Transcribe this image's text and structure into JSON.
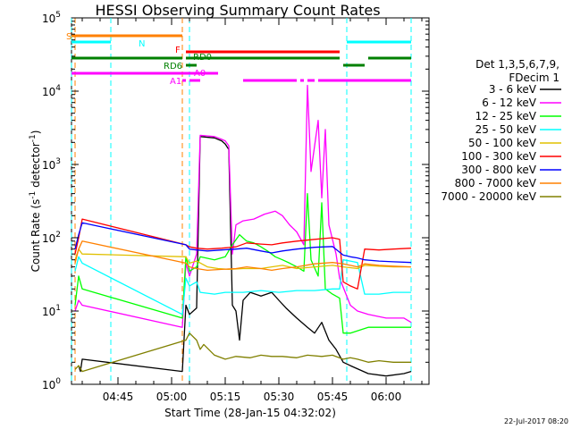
{
  "chart_data": {
    "type": "line",
    "title": "HESSI Observing Summary Count Rates",
    "xlabel": "Start Time (28-Jan-15 04:32:02)",
    "ylabel": "Count Rate (s⁻¹ detector⁻¹)",
    "ylabel_main": "Count Rate (s",
    "ylabel_sup1": "-1",
    "ylabel_mid": " detector",
    "ylabel_sup2": "-1",
    "ylabel_end": ")",
    "y_scale": "log",
    "ylim": [
      1,
      100000
    ],
    "y_ticks": [
      {
        "value": 1,
        "base": "10",
        "exp": "0"
      },
      {
        "value": 10,
        "base": "10",
        "exp": "1"
      },
      {
        "value": 100,
        "base": "10",
        "exp": "2"
      },
      {
        "value": 1000,
        "base": "10",
        "exp": "3"
      },
      {
        "value": 10000,
        "base": "10",
        "exp": "4"
      },
      {
        "value": 100000,
        "base": "10",
        "exp": "5"
      }
    ],
    "xlim": [
      "04:32",
      "06:12"
    ],
    "x_ticks": [
      "04:45",
      "05:00",
      "05:15",
      "05:30",
      "05:45",
      "06:00"
    ],
    "legend_title_1": "Det 1,3,5,6,7,9,",
    "legend_title_2": "FDecim 1",
    "legend_position": "right",
    "series": [
      {
        "name": "3 - 6 keV",
        "color": "#000000",
        "values": [
          [
            "04:34",
            1.8
          ],
          [
            "04:34.5",
            1.5
          ],
          [
            "04:35",
            2.2
          ],
          [
            "05:03",
            1.5
          ],
          [
            "05:04",
            12
          ],
          [
            "05:05",
            9
          ],
          [
            "05:07",
            11
          ],
          [
            "05:08",
            2400
          ],
          [
            "05:12",
            2300
          ],
          [
            "05:14",
            2100
          ],
          [
            "05:15",
            1900
          ],
          [
            "05:16",
            1600
          ],
          [
            "05:17",
            12
          ],
          [
            "05:18",
            10
          ],
          [
            "05:19",
            4
          ],
          [
            "05:20",
            14
          ],
          [
            "05:22",
            18
          ],
          [
            "05:25",
            16
          ],
          [
            "05:28",
            18
          ],
          [
            "05:30",
            14
          ],
          [
            "05:32",
            11
          ],
          [
            "05:35",
            8
          ],
          [
            "05:38",
            6
          ],
          [
            "05:40",
            5
          ],
          [
            "05:42",
            7
          ],
          [
            "05:44",
            4
          ],
          [
            "05:46",
            3
          ],
          [
            "05:48",
            2
          ],
          [
            "05:50",
            1.8
          ],
          [
            "05:55",
            1.4
          ],
          [
            "06:00",
            1.3
          ],
          [
            "06:05",
            1.4
          ],
          [
            "06:07",
            1.5
          ]
        ]
      },
      {
        "name": "6 - 12 keV",
        "color": "#ff00ff",
        "values": [
          [
            "04:33",
            10
          ],
          [
            "04:34",
            14
          ],
          [
            "04:35",
            12
          ],
          [
            "05:03",
            6
          ],
          [
            "05:04",
            45
          ],
          [
            "05:05",
            30
          ],
          [
            "05:07",
            60
          ],
          [
            "05:08",
            2500
          ],
          [
            "05:12",
            2400
          ],
          [
            "05:14",
            2200
          ],
          [
            "05:15",
            2100
          ],
          [
            "05:16",
            1800
          ],
          [
            "05:17",
            60
          ],
          [
            "05:18",
            150
          ],
          [
            "05:20",
            170
          ],
          [
            "05:23",
            180
          ],
          [
            "05:26",
            210
          ],
          [
            "05:29",
            230
          ],
          [
            "05:31",
            200
          ],
          [
            "05:33",
            150
          ],
          [
            "05:35",
            120
          ],
          [
            "05:37",
            80
          ],
          [
            "05:38",
            12000
          ],
          [
            "05:39",
            800
          ],
          [
            "05:41",
            4000
          ],
          [
            "05:42",
            350
          ],
          [
            "05:43",
            3000
          ],
          [
            "05:44",
            150
          ],
          [
            "05:46",
            60
          ],
          [
            "05:47",
            28
          ],
          [
            "05:50",
            12
          ],
          [
            "05:52",
            10
          ],
          [
            "05:55",
            9
          ],
          [
            "06:00",
            8
          ],
          [
            "06:05",
            8
          ],
          [
            "06:07",
            7
          ]
        ]
      },
      {
        "name": "12 - 25 keV",
        "color": "#00ff00",
        "values": [
          [
            "04:33",
            12
          ],
          [
            "04:34",
            30
          ],
          [
            "04:35",
            20
          ],
          [
            "05:03",
            8
          ],
          [
            "05:04",
            55
          ],
          [
            "05:05",
            35
          ],
          [
            "05:07",
            40
          ],
          [
            "05:08",
            55
          ],
          [
            "05:12",
            50
          ],
          [
            "05:15",
            55
          ],
          [
            "05:17",
            80
          ],
          [
            "05:19",
            110
          ],
          [
            "05:21",
            90
          ],
          [
            "05:23",
            85
          ],
          [
            "05:25",
            75
          ],
          [
            "05:27",
            65
          ],
          [
            "05:29",
            55
          ],
          [
            "05:31",
            50
          ],
          [
            "05:33",
            45
          ],
          [
            "05:35",
            40
          ],
          [
            "05:37",
            35
          ],
          [
            "05:38",
            400
          ],
          [
            "05:39",
            50
          ],
          [
            "05:41",
            30
          ],
          [
            "05:42",
            300
          ],
          [
            "05:43",
            20
          ],
          [
            "05:45",
            17
          ],
          [
            "05:47",
            15
          ],
          [
            "05:48",
            5
          ],
          [
            "05:50",
            5
          ],
          [
            "05:55",
            6
          ],
          [
            "06:00",
            6
          ],
          [
            "06:05",
            6
          ],
          [
            "06:07",
            6
          ]
        ]
      },
      {
        "name": "25 - 50 keV",
        "color": "#00ffff",
        "values": [
          [
            "04:33",
            35
          ],
          [
            "04:34",
            55
          ],
          [
            "04:35",
            45
          ],
          [
            "05:03",
            9
          ],
          [
            "05:04",
            28
          ],
          [
            "05:05",
            22
          ],
          [
            "05:07",
            25
          ],
          [
            "05:08",
            18
          ],
          [
            "05:12",
            17
          ],
          [
            "05:15",
            18
          ],
          [
            "05:20",
            18
          ],
          [
            "05:25",
            19
          ],
          [
            "05:30",
            18
          ],
          [
            "05:35",
            19
          ],
          [
            "05:40",
            19
          ],
          [
            "05:45",
            20
          ],
          [
            "05:47",
            20
          ],
          [
            "05:48",
            50
          ],
          [
            "05:50",
            48
          ],
          [
            "05:52",
            46
          ],
          [
            "05:54",
            17
          ],
          [
            "05:58",
            17
          ],
          [
            "06:02",
            18
          ],
          [
            "06:07",
            18
          ]
        ]
      },
      {
        "name": "50 - 100 keV",
        "color": "#e0c000",
        "values": [
          [
            "04:33",
            50
          ],
          [
            "04:34",
            70
          ],
          [
            "04:35",
            60
          ],
          [
            "05:04",
            55
          ],
          [
            "05:05",
            45
          ],
          [
            "05:07",
            48
          ],
          [
            "05:10",
            40
          ],
          [
            "05:13",
            38
          ],
          [
            "05:16",
            37
          ],
          [
            "05:20",
            38
          ],
          [
            "05:25",
            38
          ],
          [
            "05:28",
            40
          ],
          [
            "05:31",
            42
          ],
          [
            "05:35",
            38
          ],
          [
            "05:40",
            40
          ],
          [
            "05:45",
            42
          ],
          [
            "05:48",
            40
          ],
          [
            "05:50",
            39
          ],
          [
            "05:52",
            38
          ],
          [
            "05:54",
            42
          ],
          [
            "05:58",
            41
          ],
          [
            "06:02",
            40
          ],
          [
            "06:07",
            40
          ]
        ]
      },
      {
        "name": "100 - 300 keV",
        "color": "#ff0000",
        "values": [
          [
            "04:33",
            60
          ],
          [
            "04:34",
            100
          ],
          [
            "04:35",
            180
          ],
          [
            "05:04",
            80
          ],
          [
            "05:05",
            75
          ],
          [
            "05:07",
            72
          ],
          [
            "05:10",
            70
          ],
          [
            "05:14",
            72
          ],
          [
            "05:18",
            75
          ],
          [
            "05:21",
            85
          ],
          [
            "05:25",
            82
          ],
          [
            "05:28",
            80
          ],
          [
            "05:31",
            85
          ],
          [
            "05:35",
            90
          ],
          [
            "05:40",
            95
          ],
          [
            "05:45",
            100
          ],
          [
            "05:47",
            95
          ],
          [
            "05:48",
            25
          ],
          [
            "05:50",
            22
          ],
          [
            "05:52",
            20
          ],
          [
            "05:54",
            70
          ],
          [
            "05:58",
            68
          ],
          [
            "06:02",
            70
          ],
          [
            "06:07",
            72
          ]
        ]
      },
      {
        "name": "300 - 800 keV",
        "color": "#0000ff",
        "values": [
          [
            "04:33",
            70
          ],
          [
            "04:34",
            110
          ],
          [
            "04:35",
            160
          ],
          [
            "05:04",
            80
          ],
          [
            "05:05",
            70
          ],
          [
            "05:07",
            68
          ],
          [
            "05:10",
            66
          ],
          [
            "05:14",
            68
          ],
          [
            "05:18",
            70
          ],
          [
            "05:21",
            72
          ],
          [
            "05:25",
            66
          ],
          [
            "05:28",
            62
          ],
          [
            "05:31",
            66
          ],
          [
            "05:35",
            70
          ],
          [
            "05:40",
            74
          ],
          [
            "05:45",
            76
          ],
          [
            "05:48",
            58
          ],
          [
            "05:50",
            55
          ],
          [
            "05:52",
            53
          ],
          [
            "05:54",
            50
          ],
          [
            "05:58",
            48
          ],
          [
            "06:02",
            47
          ],
          [
            "06:07",
            46
          ]
        ]
      },
      {
        "name": "800 - 7000 keV",
        "color": "#ff8000",
        "values": [
          [
            "04:33",
            45
          ],
          [
            "04:34",
            70
          ],
          [
            "04:35",
            90
          ],
          [
            "05:04",
            45
          ],
          [
            "05:05",
            40
          ],
          [
            "05:07",
            38
          ],
          [
            "05:10",
            36
          ],
          [
            "05:14",
            37
          ],
          [
            "05:18",
            38
          ],
          [
            "05:21",
            40
          ],
          [
            "05:25",
            38
          ],
          [
            "05:28",
            36
          ],
          [
            "05:31",
            38
          ],
          [
            "05:35",
            40
          ],
          [
            "05:40",
            44
          ],
          [
            "05:45",
            46
          ],
          [
            "05:48",
            44
          ],
          [
            "05:50",
            42
          ],
          [
            "05:52",
            40
          ],
          [
            "05:54",
            44
          ],
          [
            "05:58",
            42
          ],
          [
            "06:02",
            41
          ],
          [
            "06:07",
            40
          ]
        ]
      },
      {
        "name": "7000 - 20000 keV",
        "color": "#808000",
        "values": [
          [
            "04:33",
            1.6
          ],
          [
            "04:34",
            1.8
          ],
          [
            "04:35",
            1.5
          ],
          [
            "05:04",
            4
          ],
          [
            "05:05",
            5
          ],
          [
            "05:07",
            4
          ],
          [
            "05:08",
            3
          ],
          [
            "05:09",
            3.5
          ],
          [
            "05:12",
            2.5
          ],
          [
            "05:15",
            2.2
          ],
          [
            "05:18",
            2.4
          ],
          [
            "05:22",
            2.3
          ],
          [
            "05:25",
            2.5
          ],
          [
            "05:28",
            2.4
          ],
          [
            "05:31",
            2.4
          ],
          [
            "05:35",
            2.3
          ],
          [
            "05:38",
            2.5
          ],
          [
            "05:42",
            2.4
          ],
          [
            "05:45",
            2.5
          ],
          [
            "05:48",
            2.2
          ],
          [
            "05:50",
            2.3
          ],
          [
            "05:52",
            2.2
          ],
          [
            "05:55",
            2.0
          ],
          [
            "05:58",
            2.1
          ],
          [
            "06:02",
            2.0
          ],
          [
            "06:07",
            2.0
          ]
        ]
      }
    ],
    "flags": [
      {
        "label": "S",
        "color": "#ff8000",
        "level": 1,
        "segments": [
          [
            "04:32",
            "05:03"
          ]
        ]
      },
      {
        "label": "N",
        "color": "#00ffff",
        "level": 2,
        "segments": [
          [
            "04:32",
            "04:43"
          ],
          [
            "05:49",
            "06:07"
          ]
        ]
      },
      {
        "label": "F",
        "color": "#ff0000",
        "level": 3,
        "segments": [
          [
            "05:04",
            "05:47"
          ]
        ]
      },
      {
        "label": "RD0",
        "color": "#008000",
        "level": 4,
        "segments": [
          [
            "04:32",
            "05:03"
          ],
          [
            "05:04",
            "05:47"
          ],
          [
            "05:55",
            "06:07"
          ]
        ]
      },
      {
        "label": "RD6",
        "color": "#008000",
        "level": 5,
        "segments": [
          [
            "05:04",
            "05:07"
          ],
          [
            "05:48",
            "05:54"
          ]
        ]
      },
      {
        "label": "A0",
        "color": "#ff00ff",
        "level": 6,
        "segments": [
          [
            "04:32",
            "05:13"
          ]
        ]
      },
      {
        "label": "A1",
        "color": "#ff00ff",
        "level": 7,
        "segments": [
          [
            "05:03",
            "05:04"
          ],
          [
            "05:05",
            "05:08"
          ],
          [
            "05:20",
            "05:35"
          ],
          [
            "05:36",
            "05:37"
          ],
          [
            "05:38",
            "05:40"
          ],
          [
            "05:41",
            "06:07"
          ]
        ]
      }
    ],
    "markers": [
      {
        "name": "vline-cyan-1",
        "time": "04:32",
        "color": "#00ffff"
      },
      {
        "name": "vline-orange-1",
        "time": "04:33",
        "color": "#ff8000"
      },
      {
        "name": "vline-cyan-2",
        "time": "04:43",
        "color": "#00ffff"
      },
      {
        "name": "vline-orange-2",
        "time": "05:03",
        "color": "#ff8000"
      },
      {
        "name": "vline-cyan-3",
        "time": "05:05",
        "color": "#00ffff"
      },
      {
        "name": "vline-cyan-4",
        "time": "05:49",
        "color": "#00ffff"
      },
      {
        "name": "vline-cyan-5",
        "time": "06:07",
        "color": "#00ffff"
      }
    ],
    "footer_date": "22-Jul-2017 08:20"
  }
}
